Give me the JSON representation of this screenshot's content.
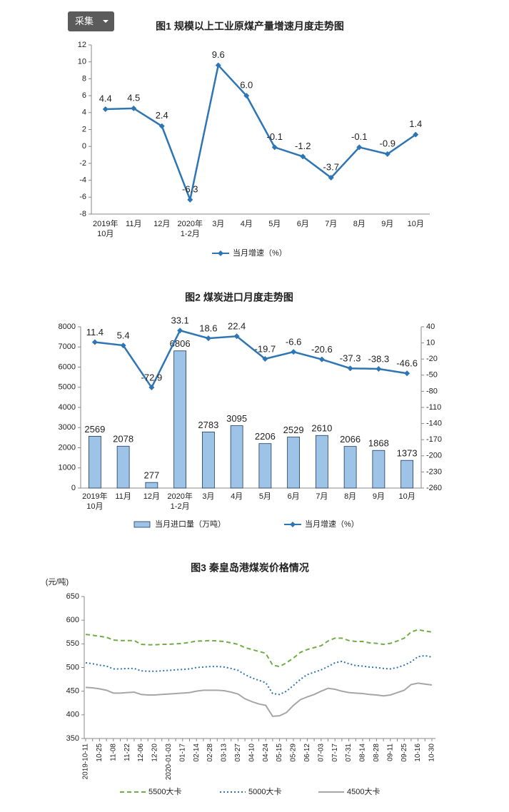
{
  "toolbar": {
    "button": "采集"
  },
  "chart_data": [
    {
      "type": "line",
      "title": "图1  规模以上工业原煤产量增速月度走势图",
      "categories": [
        "2019年\n10月",
        "11月",
        "12月",
        "2020年\n1-2月",
        "3月",
        "4月",
        "5月",
        "6月",
        "7月",
        "8月",
        "9月",
        "10月"
      ],
      "series": [
        {
          "name": "当月增速（%）",
          "type": "line",
          "color": "#2e75b6",
          "marker": "diamond",
          "values": [
            4.4,
            4.5,
            2.4,
            -6.3,
            9.6,
            6.0,
            -0.1,
            -1.2,
            -3.7,
            -0.1,
            -0.9,
            1.4
          ],
          "value_labels": [
            "4.4",
            "4.5",
            "2.4",
            "-6.3",
            "9.6",
            "6.0",
            "-0.1",
            "-1.2",
            "-3.7",
            "-0.1",
            "-0.9",
            "1.4"
          ]
        }
      ],
      "ylim": [
        -8,
        12
      ],
      "yticks": [
        -8,
        -6,
        -4,
        -2,
        0,
        2,
        4,
        6,
        8,
        10,
        12
      ],
      "grid": false
    },
    {
      "type": "combo",
      "title": "图2  煤炭进口月度走势图",
      "categories": [
        "2019年\n10月",
        "11月",
        "12月",
        "2020年\n1-2月",
        "3月",
        "4月",
        "5月",
        "6月",
        "7月",
        "8月",
        "9月",
        "10月"
      ],
      "series": [
        {
          "name": "当月进口量（万吨）",
          "type": "bar",
          "color": "#9dc3e6",
          "values": [
            2569,
            2078,
            277,
            6806,
            2783,
            3095,
            2206,
            2529,
            2610,
            2066,
            1868,
            1373
          ]
        },
        {
          "name": "当月增速（%）",
          "type": "line",
          "axis": "y2",
          "color": "#2e75b6",
          "marker": "diamond",
          "values": [
            11.4,
            5.4,
            -72.9,
            33.1,
            18.6,
            22.4,
            -19.7,
            -6.6,
            -20.6,
            -37.3,
            -38.3,
            -46.6
          ]
        }
      ],
      "ylim": [
        0,
        8000
      ],
      "yticks": [
        0,
        1000,
        2000,
        3000,
        4000,
        5000,
        6000,
        7000,
        8000
      ],
      "y2lim": [
        -260,
        40
      ],
      "y2ticks": [
        -260,
        -230,
        -200,
        -170,
        -140,
        -110,
        -80,
        -50,
        -20,
        10,
        40
      ],
      "grid": false
    },
    {
      "type": "line",
      "title": "图3    秦皇岛港煤炭价格情况",
      "y_label": "(元/吨)",
      "categories": [
        "2019-10-11",
        null,
        "10-25",
        null,
        "11-08",
        null,
        "11-22",
        null,
        "12-06",
        null,
        "12-20",
        null,
        "2020-01-03",
        null,
        "01-17",
        null,
        "02-14",
        null,
        "02-28",
        null,
        "03-13",
        null,
        "03-27",
        null,
        "04-10",
        null,
        "04-24",
        null,
        "05-15",
        null,
        "05-29",
        null,
        "06-12",
        null,
        "07-03",
        null,
        "07-17",
        null,
        "07-31",
        null,
        "08-14",
        null,
        "08-28",
        null,
        "09-11",
        null,
        "09-25",
        null,
        "10-16",
        null,
        "10-30"
      ],
      "series": [
        {
          "name": "5500大卡",
          "type": "line",
          "color": "#70ad47",
          "dash": "dashed",
          "values": [
            570,
            568,
            566,
            564,
            558,
            557,
            557,
            557,
            549,
            548,
            548,
            549,
            549,
            550,
            551,
            553,
            556,
            556,
            557,
            556,
            555,
            552,
            549,
            542,
            538,
            534,
            530,
            505,
            502,
            510,
            520,
            532,
            538,
            542,
            546,
            556,
            562,
            562,
            557,
            555,
            555,
            552,
            551,
            549,
            551,
            556,
            562,
            575,
            580,
            577,
            575
          ]
        },
        {
          "name": "5000大卡",
          "type": "line",
          "color": "#2e75b6",
          "dash": "dotted",
          "values": [
            510,
            508,
            505,
            503,
            497,
            497,
            498,
            498,
            493,
            492,
            492,
            493,
            494,
            495,
            496,
            497,
            500,
            501,
            502,
            502,
            501,
            498,
            494,
            485,
            478,
            473,
            468,
            445,
            443,
            450,
            462,
            475,
            485,
            490,
            495,
            502,
            510,
            513,
            508,
            504,
            503,
            501,
            500,
            498,
            497,
            500,
            505,
            512,
            523,
            525,
            522
          ]
        },
        {
          "name": "4500大卡",
          "type": "line",
          "color": "#a6a6a6",
          "dash": "solid",
          "values": [
            458,
            457,
            455,
            452,
            446,
            446,
            447,
            448,
            443,
            442,
            442,
            443,
            444,
            445,
            446,
            447,
            450,
            452,
            452,
            452,
            451,
            448,
            444,
            434,
            428,
            423,
            420,
            397,
            398,
            405,
            420,
            432,
            438,
            443,
            450,
            456,
            454,
            450,
            447,
            446,
            445,
            443,
            442,
            440,
            442,
            447,
            452,
            464,
            467,
            465,
            463
          ]
        }
      ],
      "ylim": [
        350,
        650
      ],
      "yticks": [
        350,
        400,
        450,
        500,
        550,
        600,
        650
      ],
      "grid": false
    }
  ]
}
